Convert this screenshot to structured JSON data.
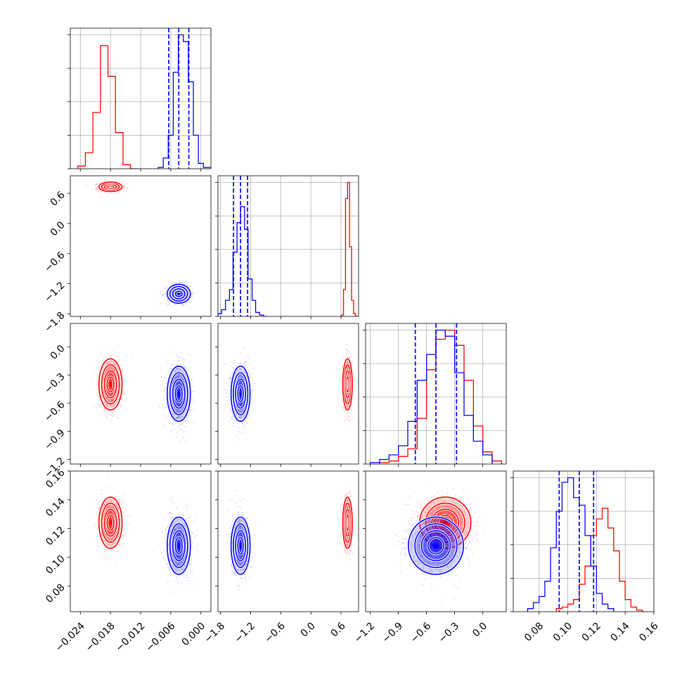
{
  "colors": {
    "series_a": "#ff0000",
    "series_b": "#0000ff",
    "grid": "#b0b0b0",
    "axis": "#000000"
  },
  "chart_data": {
    "type": "corner",
    "params": [
      {
        "range": [
          -0.026,
          0.002
        ],
        "ticks": [
          "-0.024",
          "-0.018",
          "-0.012",
          "-0.006",
          "0.000"
        ],
        "tick_values": [
          -0.024,
          -0.018,
          -0.012,
          -0.006,
          0.0
        ]
      },
      {
        "range": [
          -1.85,
          0.95
        ],
        "ticks": [
          "-1.8",
          "-1.2",
          "-0.6",
          "0.0",
          "0.6"
        ],
        "tick_values": [
          -1.8,
          -1.2,
          -0.6,
          0.0,
          0.6
        ]
      },
      {
        "range": [
          -1.25,
          0.25
        ],
        "ticks": [
          "-1.2",
          "-0.9",
          "-0.6",
          "-0.3",
          "0.0"
        ],
        "tick_values": [
          -1.2,
          -0.9,
          -0.6,
          -0.3,
          0.0
        ]
      },
      {
        "range": [
          0.062,
          0.16
        ],
        "ticks": [
          "0.08",
          "0.10",
          "0.12",
          "0.14",
          "0.16"
        ],
        "tick_values": [
          0.08,
          0.1,
          0.12,
          0.14,
          0.16
        ]
      }
    ],
    "series": [
      {
        "color": "#ff0000",
        "mean": [
          -0.018,
          0.73,
          -0.4,
          0.124
        ],
        "sd": [
          0.0011,
          0.045,
          0.13,
          0.0085
        ],
        "quantiles": null,
        "histograms": [
          {
            "edges": [
              -0.0245,
              -0.023,
              -0.0215,
              -0.02,
              -0.0185,
              -0.017,
              -0.0155,
              -0.014,
              -0.0125
            ],
            "counts": [
              2,
              12,
              42,
              92,
              69,
              27,
              3,
              0
            ]
          },
          {
            "edges": [
              0.57,
              0.61,
              0.65,
              0.69,
              0.73,
              0.77,
              0.81,
              0.85,
              0.89,
              0.93
            ],
            "counts": [
              0,
              1,
              20,
              88,
              100,
              52,
              12,
              2,
              0
            ]
          },
          {
            "edges": [
              -1.1,
              -1.0,
              -0.9,
              -0.8,
              -0.7,
              -0.6,
              -0.5,
              -0.4,
              -0.3,
              -0.2,
              -0.1,
              0.0,
              0.1,
              0.2
            ],
            "counts": [
              1,
              2,
              5,
              10,
              30,
              62,
              82,
              88,
              78,
              55,
              25,
              8,
              2
            ]
          },
          {
            "edges": [
              0.092,
              0.096,
              0.1,
              0.104,
              0.108,
              0.112,
              0.116,
              0.12,
              0.124,
              0.128,
              0.132,
              0.136,
              0.14,
              0.144,
              0.148,
              0.152
            ],
            "counts": [
              2,
              3,
              5,
              8,
              18,
              30,
              50,
              61,
              68,
              55,
              40,
              20,
              8,
              3,
              1
            ]
          }
        ]
      },
      {
        "color": "#0000ff",
        "mean": [
          -0.0044,
          -1.4,
          -0.5,
          0.108
        ],
        "sd": [
          0.0011,
          0.09,
          0.14,
          0.0095
        ],
        "quantiles": [
          [
            -0.0064,
            -0.0044,
            -0.0024
          ],
          [
            -1.54,
            -1.4,
            -1.26
          ],
          [
            -0.72,
            -0.5,
            -0.28
          ],
          [
            0.094,
            0.108,
            0.118
          ]
        ],
        "histograms": [
          {
            "edges": [
              -0.0085,
              -0.0075,
              -0.0065,
              -0.0055,
              -0.0045,
              -0.0035,
              -0.0025,
              -0.0015,
              -0.0005,
              0.0005,
              0.002
            ],
            "counts": [
              1,
              8,
              25,
              72,
              100,
              95,
              65,
              25,
              4,
              1
            ]
          },
          {
            "edges": [
              -1.85,
              -1.78,
              -1.7,
              -1.62,
              -1.55,
              -1.47,
              -1.4,
              -1.32,
              -1.25,
              -1.17,
              -1.1,
              -1.02,
              -0.94,
              -0.87
            ],
            "counts": [
              2,
              5,
              12,
              20,
              48,
              70,
              82,
              65,
              28,
              12,
              3,
              1,
              0
            ]
          },
          {
            "edges": [
              -1.2,
              -1.1,
              -1.0,
              -0.9,
              -0.8,
              -0.7,
              -0.6,
              -0.5,
              -0.4,
              -0.3,
              -0.2,
              -0.1,
              0.0,
              0.1
            ],
            "counts": [
              1,
              3,
              6,
              12,
              28,
              55,
              72,
              88,
              84,
              60,
              32,
              15,
              6
            ]
          },
          {
            "edges": [
              0.072,
              0.076,
              0.08,
              0.084,
              0.088,
              0.092,
              0.096,
              0.1,
              0.104,
              0.108,
              0.112,
              0.116,
              0.12,
              0.124,
              0.128,
              0.132
            ],
            "counts": [
              2,
              6,
              10,
              20,
              42,
              66,
              85,
              88,
              75,
              70,
              50,
              30,
              12,
              5,
              2
            ]
          }
        ]
      }
    ],
    "contour_levels_sigma": [
      0.6,
      1.1,
      1.6,
      2.1
    ],
    "grid": true
  }
}
